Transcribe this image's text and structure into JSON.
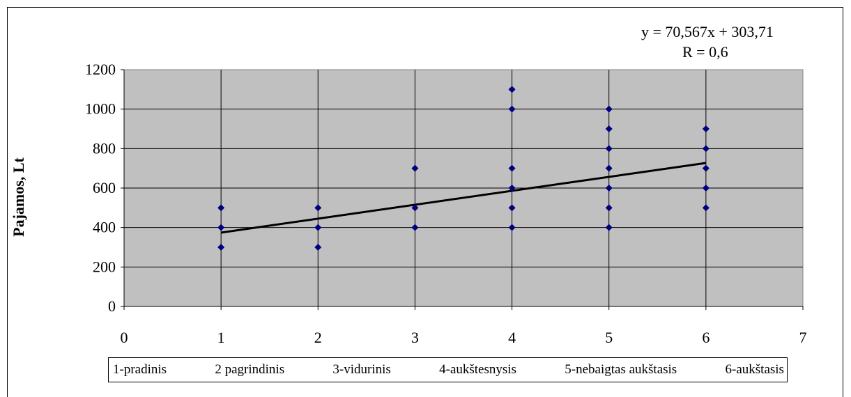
{
  "chart_data": {
    "type": "scatter",
    "title": "",
    "xlabel": "",
    "ylabel": "Pajamos, Lt",
    "xlim": [
      0,
      7
    ],
    "ylim": [
      0,
      1200
    ],
    "x_ticks": [
      "0",
      "1",
      "2",
      "3",
      "4",
      "5",
      "6",
      "7"
    ],
    "y_ticks": [
      "0",
      "200",
      "400",
      "600",
      "800",
      "1000",
      "1200"
    ],
    "grid": true,
    "background_color": "#c0c0c0",
    "marker_color": "#000080",
    "marker": "diamond",
    "points": [
      {
        "x": 1,
        "y": 300
      },
      {
        "x": 1,
        "y": 400
      },
      {
        "x": 1,
        "y": 500
      },
      {
        "x": 2,
        "y": 300
      },
      {
        "x": 2,
        "y": 400
      },
      {
        "x": 2,
        "y": 500
      },
      {
        "x": 3,
        "y": 400
      },
      {
        "x": 3,
        "y": 500
      },
      {
        "x": 3,
        "y": 700
      },
      {
        "x": 4,
        "y": 400
      },
      {
        "x": 4,
        "y": 500
      },
      {
        "x": 4,
        "y": 600
      },
      {
        "x": 4,
        "y": 700
      },
      {
        "x": 4,
        "y": 1000
      },
      {
        "x": 4,
        "y": 1100
      },
      {
        "x": 5,
        "y": 400
      },
      {
        "x": 5,
        "y": 500
      },
      {
        "x": 5,
        "y": 600
      },
      {
        "x": 5,
        "y": 700
      },
      {
        "x": 5,
        "y": 800
      },
      {
        "x": 5,
        "y": 900
      },
      {
        "x": 5,
        "y": 1000
      },
      {
        "x": 6,
        "y": 500
      },
      {
        "x": 6,
        "y": 600
      },
      {
        "x": 6,
        "y": 700
      },
      {
        "x": 6,
        "y": 800
      },
      {
        "x": 6,
        "y": 900
      }
    ],
    "trendline": {
      "type": "linear",
      "slope": 70.567,
      "intercept": 303.71,
      "x_range": [
        1,
        6
      ],
      "color": "#000000",
      "equation_label": "y = 70,567x + 303,71",
      "r_label": "R = 0,6"
    },
    "legend": {
      "placement": "bottom",
      "entries": [
        "1-pradinis",
        "2 pagrindinis",
        "3-vidurinis",
        "4-aukštesnysis",
        "5-nebaigtas aukštasis",
        "6-aukštasis"
      ]
    }
  }
}
